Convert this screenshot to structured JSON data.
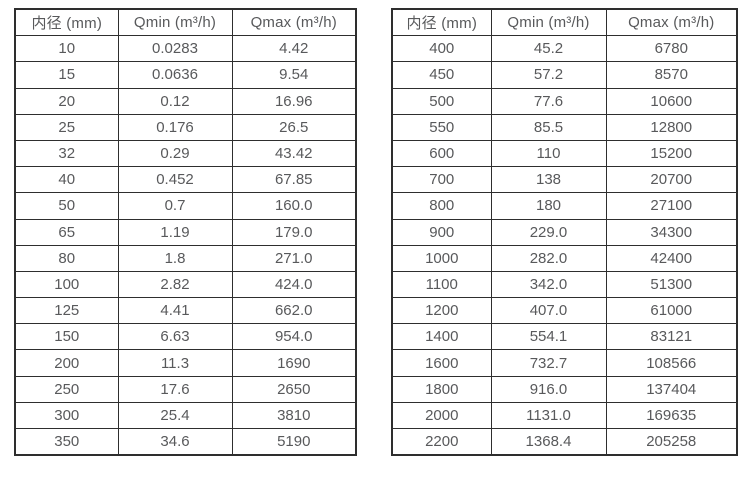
{
  "chart_data": [
    {
      "type": "table",
      "title": "",
      "columns": [
        "内径 (mm)",
        "Qmin (m³/h)",
        "Qmax (m³/h)"
      ],
      "rows": [
        [
          "10",
          "0.0283",
          "4.42"
        ],
        [
          "15",
          "0.0636",
          "9.54"
        ],
        [
          "20",
          "0.12",
          "16.96"
        ],
        [
          "25",
          "0.176",
          "26.5"
        ],
        [
          "32",
          "0.29",
          "43.42"
        ],
        [
          "40",
          "0.452",
          "67.85"
        ],
        [
          "50",
          "0.7",
          "160.0"
        ],
        [
          "65",
          "1.19",
          "179.0"
        ],
        [
          "80",
          "1.8",
          "271.0"
        ],
        [
          "100",
          "2.82",
          "424.0"
        ],
        [
          "125",
          "4.41",
          "662.0"
        ],
        [
          "150",
          "6.63",
          "954.0"
        ],
        [
          "200",
          "11.3",
          "1690"
        ],
        [
          "250",
          "17.6",
          "2650"
        ],
        [
          "300",
          "25.4",
          "3810"
        ],
        [
          "350",
          "34.6",
          "5190"
        ]
      ]
    },
    {
      "type": "table",
      "title": "",
      "columns": [
        "内径 (mm)",
        "Qmin (m³/h)",
        "Qmax (m³/h)"
      ],
      "rows": [
        [
          "400",
          "45.2",
          "6780"
        ],
        [
          "450",
          "57.2",
          "8570"
        ],
        [
          "500",
          "77.6",
          "10600"
        ],
        [
          "550",
          "85.5",
          "12800"
        ],
        [
          "600",
          "110",
          "15200"
        ],
        [
          "700",
          "138",
          "20700"
        ],
        [
          "800",
          "180",
          "27100"
        ],
        [
          "900",
          "229.0",
          "34300"
        ],
        [
          "1000",
          "282.0",
          "42400"
        ],
        [
          "1100",
          "342.0",
          "51300"
        ],
        [
          "1200",
          "407.0",
          "61000"
        ],
        [
          "1400",
          "554.1",
          "83121"
        ],
        [
          "1600",
          "732.7",
          "108566"
        ],
        [
          "1800",
          "916.0",
          "137404"
        ],
        [
          "2000",
          "1131.0",
          "169635"
        ],
        [
          "2200",
          "1368.4",
          "205258"
        ]
      ]
    }
  ],
  "colors": {
    "border": "#2e2e2e",
    "text": "#58595b",
    "background": "#ffffff"
  }
}
